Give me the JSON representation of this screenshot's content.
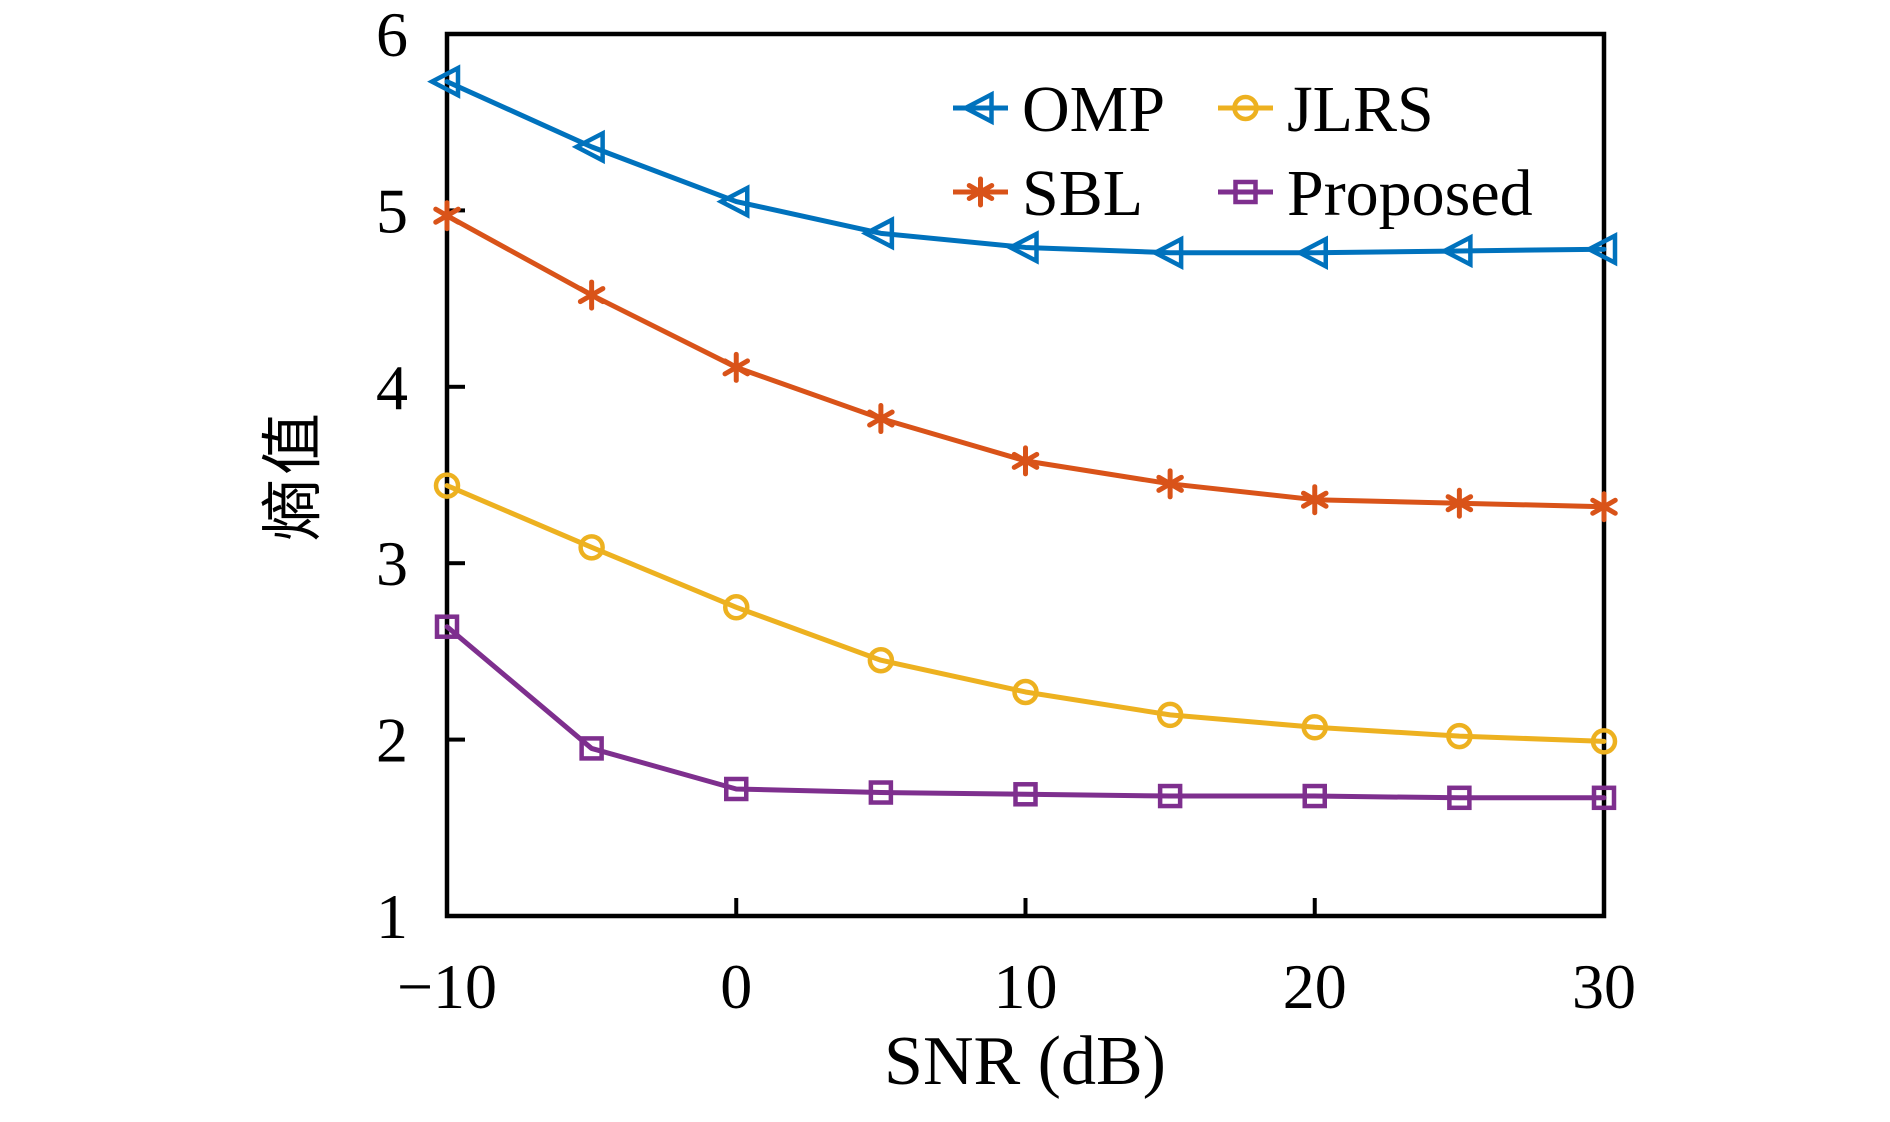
{
  "chart_data": {
    "type": "line",
    "title": "",
    "xlabel": "SNR (dB)",
    "ylabel": "熵值",
    "xlim": [
      -10,
      30
    ],
    "ylim": [
      1,
      6
    ],
    "x": [
      -10,
      -5,
      0,
      5,
      10,
      15,
      20,
      25,
      30
    ],
    "x_ticks": [
      -10,
      0,
      10,
      20,
      30
    ],
    "x_tick_labels": [
      "−10",
      "0",
      "10",
      "20",
      "30"
    ],
    "y_ticks": [
      1,
      2,
      3,
      4,
      5,
      6
    ],
    "y_tick_labels": [
      "1",
      "2",
      "3",
      "4",
      "5",
      "6"
    ],
    "grid": false,
    "legend_position": "top-right-inside",
    "legend_columns": 2,
    "legend_frame": false,
    "series": [
      {
        "name": "OMP",
        "color": "#0072BD",
        "marker": "triangle-left",
        "values": [
          5.73,
          5.36,
          5.05,
          4.87,
          4.79,
          4.76,
          4.76,
          4.77,
          4.78
        ]
      },
      {
        "name": "SBL",
        "color": "#D95319",
        "marker": "asterisk",
        "values": [
          4.97,
          4.52,
          4.11,
          3.82,
          3.58,
          3.45,
          3.36,
          3.34,
          3.32
        ]
      },
      {
        "name": "JLRS",
        "color": "#EDB120",
        "marker": "circle",
        "values": [
          3.44,
          3.09,
          2.75,
          2.45,
          2.27,
          2.14,
          2.07,
          2.02,
          1.99
        ]
      },
      {
        "name": "Proposed",
        "color": "#7E2F8E",
        "marker": "square",
        "values": [
          2.64,
          1.95,
          1.72,
          1.7,
          1.69,
          1.68,
          1.68,
          1.67,
          1.67
        ]
      }
    ]
  }
}
